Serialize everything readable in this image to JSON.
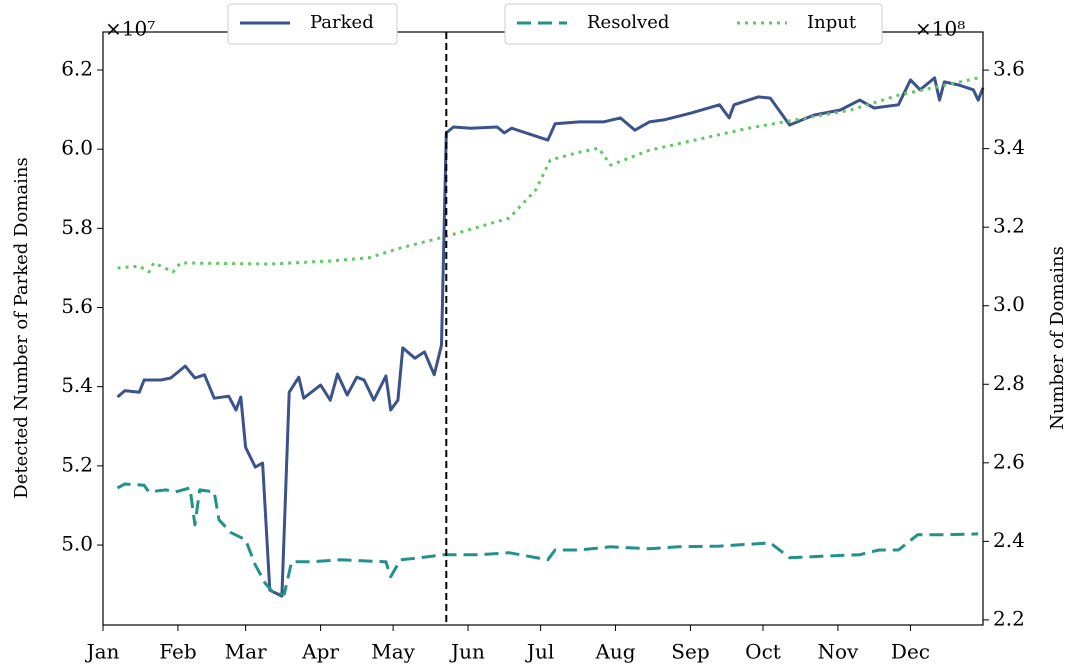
{
  "chart_data": {
    "type": "line",
    "xlim": [
      0,
      364
    ],
    "xticks": [
      {
        "value": 0,
        "label": "Jan"
      },
      {
        "value": 31,
        "label": "Feb"
      },
      {
        "value": 59,
        "label": "Mar"
      },
      {
        "value": 90,
        "label": "Apr"
      },
      {
        "value": 120,
        "label": "May"
      },
      {
        "value": 151,
        "label": "Jun"
      },
      {
        "value": 181,
        "label": "Jul"
      },
      {
        "value": 212,
        "label": "Aug"
      },
      {
        "value": 243,
        "label": "Sep"
      },
      {
        "value": 273,
        "label": "Oct"
      },
      {
        "value": 304,
        "label": "Nov"
      },
      {
        "value": 334,
        "label": "Dec"
      }
    ],
    "ylabel": "Detected Number of Parked Domains",
    "y2label": "Number of Domains",
    "y_offset_label": "×10⁷",
    "y2_offset_label": "×10⁸",
    "ylim": [
      4.798,
      6.296
    ],
    "yticks": [
      {
        "value": 5.0,
        "label": "5.0"
      },
      5.2,
      5.4,
      5.6,
      5.8,
      {
        "value": 6.0,
        "label": "6.0"
      },
      6.2
    ],
    "y2lim": [
      2.187,
      3.697
    ],
    "y2ticks": [
      2.2,
      2.4,
      2.6,
      2.8,
      {
        "value": 3.0,
        "label": "3.0"
      },
      3.2,
      3.4,
      3.6
    ],
    "vline_x": 142,
    "series": [
      {
        "name": "Parked",
        "color": "#3b528b",
        "style": "solid",
        "x": [
          6,
          9,
          15,
          17,
          24,
          28,
          34,
          38,
          42,
          46,
          52,
          55,
          57,
          59,
          63,
          66,
          69,
          74,
          77,
          81,
          83,
          90,
          94,
          97,
          101,
          105,
          108,
          112,
          117,
          119,
          122,
          124,
          129,
          133,
          137,
          140,
          142,
          145,
          152,
          163,
          166,
          169,
          184,
          187,
          197,
          207,
          214,
          220,
          226,
          232,
          243,
          255,
          259,
          261,
          271,
          276,
          284,
          294,
          305,
          313,
          319,
          329,
          334,
          338,
          344,
          346,
          348,
          354,
          360,
          362,
          364
        ],
        "values": [
          5.374,
          5.39,
          5.386,
          5.417,
          5.417,
          5.422,
          5.452,
          5.422,
          5.43,
          5.371,
          5.376,
          5.341,
          5.374,
          5.247,
          5.197,
          5.207,
          4.886,
          4.871,
          5.386,
          5.424,
          5.371,
          5.404,
          5.366,
          5.432,
          5.379,
          5.424,
          5.417,
          5.366,
          5.427,
          5.341,
          5.366,
          5.498,
          5.472,
          5.488,
          5.43,
          5.505,
          6.041,
          6.056,
          6.053,
          6.056,
          6.041,
          6.053,
          6.023,
          6.064,
          6.069,
          6.069,
          6.079,
          6.048,
          6.069,
          6.074,
          6.091,
          6.112,
          6.079,
          6.112,
          6.132,
          6.129,
          6.061,
          6.086,
          6.099,
          6.124,
          6.104,
          6.112,
          6.175,
          6.15,
          6.18,
          6.124,
          6.17,
          6.162,
          6.15,
          6.124,
          6.155
        ]
      },
      {
        "name": "Resolved",
        "color": "#21918c",
        "style": "dashed",
        "axis": "y2",
        "x": [
          6,
          9,
          17,
          19,
          26,
          30,
          36,
          38,
          40,
          46,
          48,
          53,
          59,
          63,
          67,
          71,
          75,
          78,
          86,
          98,
          117,
          119,
          123,
          131,
          141,
          156,
          168,
          184,
          187,
          197,
          210,
          226,
          238,
          255,
          276,
          284,
          300,
          313,
          321,
          329,
          337,
          350,
          362
        ],
        "values": [
          2.536,
          2.546,
          2.543,
          2.526,
          2.531,
          2.526,
          2.536,
          2.442,
          2.531,
          2.526,
          2.455,
          2.422,
          2.404,
          2.34,
          2.294,
          2.266,
          2.266,
          2.348,
          2.348,
          2.353,
          2.348,
          2.31,
          2.353,
          2.358,
          2.366,
          2.366,
          2.371,
          2.353,
          2.378,
          2.378,
          2.386,
          2.381,
          2.386,
          2.388,
          2.396,
          2.358,
          2.363,
          2.366,
          2.378,
          2.378,
          2.417,
          2.417,
          2.419
        ]
      },
      {
        "name": "Input",
        "color": "#5ec962",
        "style": "dotted",
        "axis": "y2",
        "x": [
          6,
          15,
          19,
          21,
          29,
          32,
          69,
          94,
          110,
          123,
          141,
          168,
          179,
          185,
          197,
          205,
          210,
          226,
          267,
          309,
          329,
          362
        ],
        "values": [
          3.096,
          3.101,
          3.086,
          3.109,
          3.086,
          3.109,
          3.106,
          3.114,
          3.122,
          3.147,
          3.175,
          3.223,
          3.295,
          3.371,
          3.391,
          3.401,
          3.358,
          3.396,
          3.452,
          3.498,
          3.536,
          3.58
        ]
      }
    ]
  }
}
